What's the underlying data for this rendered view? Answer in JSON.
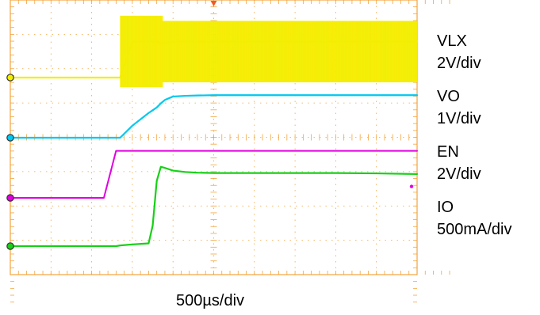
{
  "chart_data": {
    "type": "line",
    "time_scale": "500µs/div",
    "grid": true,
    "x_divisions": 10,
    "y_divisions": 8,
    "x": [
      0,
      1,
      2,
      2.3,
      2.6,
      2.7,
      3.0,
      3.4,
      3.5,
      3.6,
      3.7,
      3.8,
      4.0,
      4.3,
      4.6,
      5,
      6,
      7,
      8,
      9,
      10
    ],
    "series": [
      {
        "name": "VLX",
        "scale": "2V/div",
        "color": "#f3ee00",
        "values": [
          0,
          0,
          0,
          0,
          0,
          0,
          1.05,
          1.05,
          1.05,
          1.05,
          1.0,
          1.0,
          1.05,
          1.05,
          1.05,
          1.05,
          1.05,
          1.05,
          1.05,
          1.05,
          1.05
        ],
        "switching_band": {
          "start": 2.7,
          "end": 10,
          "low": 0,
          "high_initial": 1.8,
          "high_settled": 1.65,
          "settle_at": 3.75
        }
      },
      {
        "name": "VO",
        "scale": "1V/div",
        "color": "#00c8f0",
        "values": [
          0,
          0,
          0,
          0,
          0,
          0,
          0.35,
          0.72,
          0.8,
          0.88,
          1.0,
          1.1,
          1.2,
          1.22,
          1.23,
          1.24,
          1.24,
          1.24,
          1.24,
          1.24,
          1.24
        ]
      },
      {
        "name": "EN",
        "scale": "2V/div",
        "color": "#e000e0",
        "values": [
          0,
          0,
          0,
          0,
          1.37,
          1.37,
          1.37,
          1.37,
          1.37,
          1.37,
          1.37,
          1.37,
          1.37,
          1.37,
          1.37,
          1.37,
          1.37,
          1.37,
          1.37,
          1.37,
          1.37
        ]
      },
      {
        "name": "IO",
        "scale": "500mA/div",
        "color": "#16d116",
        "values": [
          0,
          0,
          0,
          0,
          0,
          0.02,
          0.05,
          0.08,
          0.6,
          1.9,
          2.31,
          2.28,
          2.2,
          2.16,
          2.14,
          2.13,
          2.13,
          2.13,
          2.13,
          2.12,
          2.1
        ]
      }
    ]
  }
}
